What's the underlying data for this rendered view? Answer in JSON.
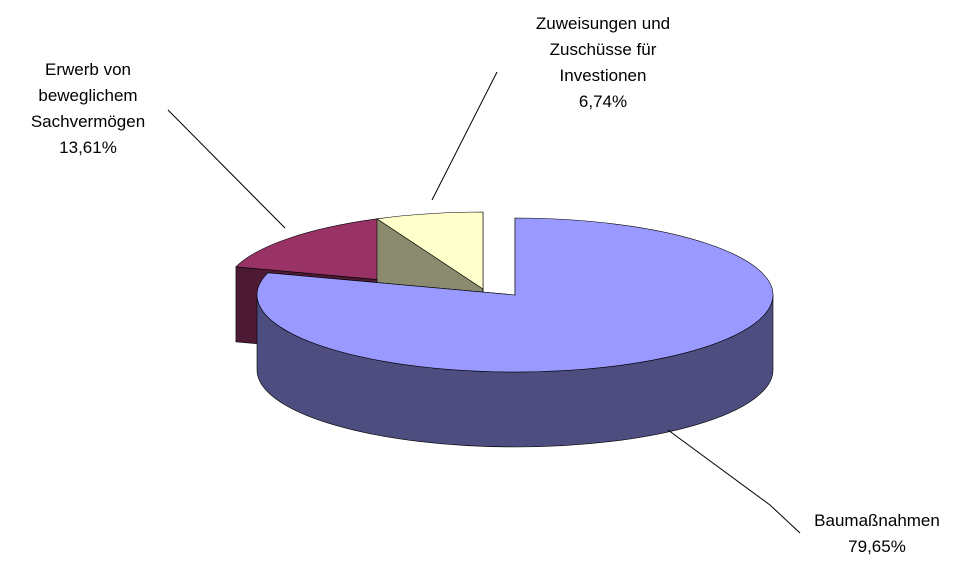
{
  "chart_data": {
    "type": "pie",
    "categories": [
      "Baumaßnahmen",
      "Erwerb von beweglichem Sachvermögen",
      "Zuweisungen und Zuschüsse für Investionen"
    ],
    "values": [
      79.65,
      13.61,
      6.74
    ],
    "value_labels": [
      "79,65%",
      "13,61%",
      "6,74%"
    ],
    "colors": [
      "#9999ff",
      "#993366",
      "#ffffcc"
    ],
    "side_colors": [
      "#4d4d80",
      "#4d1a33",
      "#8a8a6e"
    ]
  }
}
